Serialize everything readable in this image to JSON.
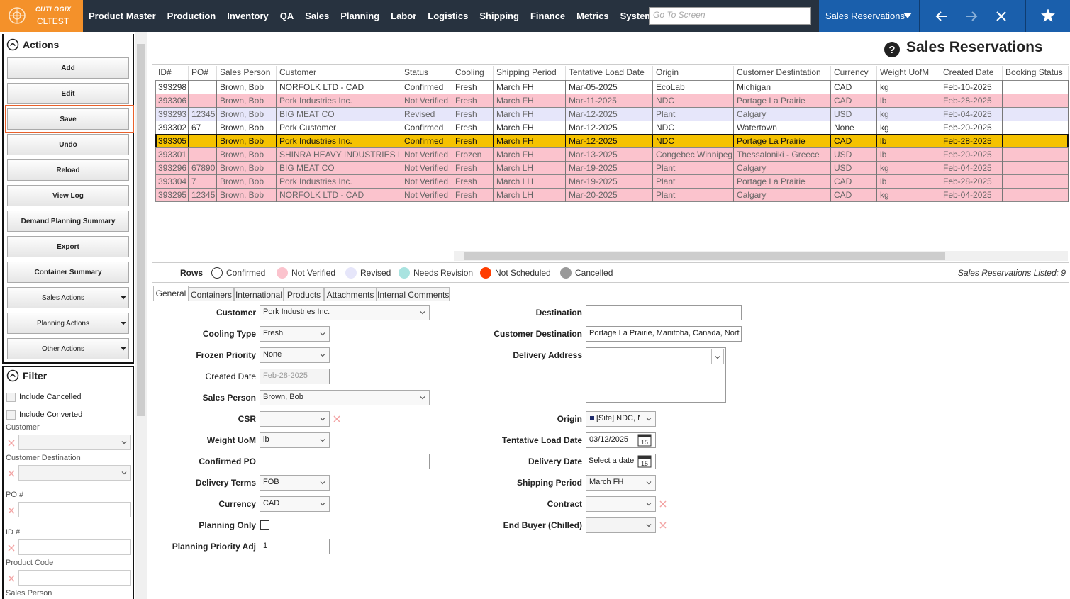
{
  "header": {
    "brand": "CUTLOGIX",
    "environment": "CLTEST",
    "menu": [
      "Product Master",
      "Production",
      "Inventory",
      "QA",
      "Sales",
      "Planning",
      "Labor",
      "Logistics",
      "Shipping",
      "Finance",
      "Metrics",
      "System"
    ],
    "search_placeholder": "Go To Screen",
    "screen": "Sales Reservations"
  },
  "sidebar": {
    "actions": {
      "title": "Actions",
      "buttons": [
        "Add",
        "Edit",
        "Save",
        "Undo",
        "Reload",
        "View Log",
        "Demand Planning Summary",
        "Export",
        "Container Summary"
      ],
      "highlighted_button": 2,
      "dropdowns": [
        "Sales Actions",
        "Planning Actions",
        "Other Actions"
      ]
    },
    "filter": {
      "title": "Filter",
      "checkboxes": [
        "Include Cancelled",
        "Include Converted"
      ],
      "fields": [
        "Customer",
        "Customer Destination",
        "PO #",
        "ID #",
        "Product Code",
        "Sales Person"
      ]
    }
  },
  "main": {
    "title": "Sales Reservations",
    "grid": {
      "columns": [
        "ID#",
        "PO#",
        "Sales Person",
        "Customer",
        "Status",
        "Cooling",
        "Shipping Period",
        "Tentative Load Date",
        "Origin",
        "Customer Destintation",
        "Currency",
        "Weight UofM",
        "Created Date",
        "Booking Status"
      ],
      "rows": [
        [
          "393298",
          null,
          "Brown, Bob",
          "NORFOLK LTD - CAD",
          "Confirmed",
          "Fresh",
          "March FH",
          "Mar-05-2025",
          "EcoLab",
          "Michigan",
          "CAD",
          "kg",
          "Feb-10-2025",
          null
        ],
        [
          "393306",
          null,
          "Brown, Bob",
          "Pork Industries Inc.",
          "Not Verified",
          "Fresh",
          "March FH",
          "Mar-11-2025",
          "NDC",
          "Portage La Prairie",
          "CAD",
          "lb",
          "Feb-28-2025",
          null
        ],
        [
          "393293",
          "12345",
          "Brown, Bob",
          "BIG MEAT CO",
          "Revised",
          "Fresh",
          "March FH",
          "Mar-12-2025",
          "Plant",
          "Calgary",
          "USD",
          "kg",
          "Feb-04-2025",
          null
        ],
        [
          "393302",
          "67",
          "Brown, Bob",
          "Pork Customer",
          "Confirmed",
          "Fresh",
          "March FH",
          "Mar-12-2025",
          "NDC",
          "Watertown",
          "None",
          "kg",
          "Feb-20-2025",
          null
        ],
        [
          "393305",
          null,
          "Brown, Bob",
          "Pork Industries Inc.",
          "Confirmed",
          "Fresh",
          "March FH",
          "Mar-12-2025",
          "NDC",
          "Portage La Prairie",
          "CAD",
          "lb",
          "Feb-28-2025",
          null
        ],
        [
          "393301",
          null,
          "Brown, Bob",
          "SHINRA HEAVY INDUSTRIES LLC",
          "Not Verified",
          "Frozen",
          "March FH",
          "Mar-13-2025",
          "Congebec Winnipeg",
          "Thessaloniki - Greece",
          "USD",
          "lb",
          "Feb-20-2025",
          null
        ],
        [
          "393296",
          "67890",
          "Brown, Bob",
          "BIG MEAT CO",
          "Not Verified",
          "Fresh",
          "March LH",
          "Mar-19-2025",
          "Plant",
          "Calgary",
          "USD",
          "kg",
          "Feb-04-2025",
          null
        ],
        [
          "393304",
          "7",
          "Brown, Bob",
          "Pork Industries Inc.",
          "Not Verified",
          "Fresh",
          "March LH",
          "Mar-19-2025",
          "Plant",
          "Portage La Prairie",
          "CAD",
          "lb",
          "Feb-28-2025",
          null
        ],
        [
          "393295",
          "12345",
          "Brown, Bob",
          "NORFOLK LTD - CAD",
          "Not Verified",
          "Fresh",
          "March LH",
          "Mar-20-2025",
          "Plant",
          "Calgary",
          "CAD",
          "kg",
          "Feb-04-2025",
          null
        ]
      ],
      "selected_row": 4,
      "selected_color": "#f5c200"
    },
    "legend": {
      "title": "Rows",
      "items": [
        {
          "label": "Confirmed",
          "color": "#ffffff"
        },
        {
          "label": "Not Verified",
          "color": "#fbc3cd"
        },
        {
          "label": "Revised",
          "color": "#e6e6fa"
        },
        {
          "label": "Needs Revision",
          "color": "#a9e3e0"
        },
        {
          "label": "Not Scheduled",
          "color": "#ff3d00"
        },
        {
          "label": "Cancelled",
          "color": "#999999"
        }
      ],
      "count": "Sales Reservations Listed: 9"
    },
    "tabs": {
      "items": [
        "General",
        "Containers",
        "International",
        "Products",
        "Attachments",
        "Internal Comments"
      ],
      "active": 0
    },
    "form": {
      "left": [
        {
          "label": "Customer",
          "control": "select",
          "value": "Pork Industries Inc."
        },
        {
          "label": "Cooling Type",
          "control": "select",
          "value": "Fresh"
        },
        {
          "label": "Frozen Priority",
          "control": "select",
          "value": "None"
        },
        {
          "label": "Created Date",
          "control": "text",
          "value": "Feb-28-2025",
          "disabled": true,
          "label_style": "normal"
        },
        {
          "label": "Sales Person",
          "control": "select",
          "value": "Brown, Bob"
        },
        {
          "label": "CSR",
          "control": "select",
          "clearable": true
        },
        {
          "label": "Weight UoM",
          "control": "select",
          "value": "lb"
        },
        {
          "label": "Confirmed PO",
          "control": "text"
        },
        {
          "label": "Delivery Terms",
          "control": "select",
          "value": "FOB"
        },
        {
          "label": "Currency",
          "control": "select",
          "value": "CAD"
        },
        {
          "label": "Planning Only",
          "control": "checkbox"
        },
        {
          "label": "Planning Priority Adj",
          "control": "text",
          "value": "1"
        }
      ],
      "right": [
        {
          "label": "Destination",
          "control": "text"
        },
        {
          "label": "Customer Destination",
          "control": "text",
          "value": "Portage La Prairie, Manitoba, Canada, North"
        },
        {
          "label": "Delivery Address",
          "control": "textarea"
        },
        {
          "label": "Origin",
          "control": "select",
          "value": "[Site] NDC, N"
        },
        {
          "label": "Tentative Load Date",
          "control": "date",
          "value": "03/12/2025"
        },
        {
          "label": "Delivery Date",
          "control": "date",
          "placeholder": "Select a date"
        },
        {
          "label": "Shipping Period",
          "control": "select",
          "value": "March FH"
        },
        {
          "label": "Contract",
          "control": "select",
          "clearable": true
        },
        {
          "label": "End Buyer (Chilled)",
          "control": "select",
          "disabled": true,
          "clearable": true
        }
      ]
    }
  }
}
